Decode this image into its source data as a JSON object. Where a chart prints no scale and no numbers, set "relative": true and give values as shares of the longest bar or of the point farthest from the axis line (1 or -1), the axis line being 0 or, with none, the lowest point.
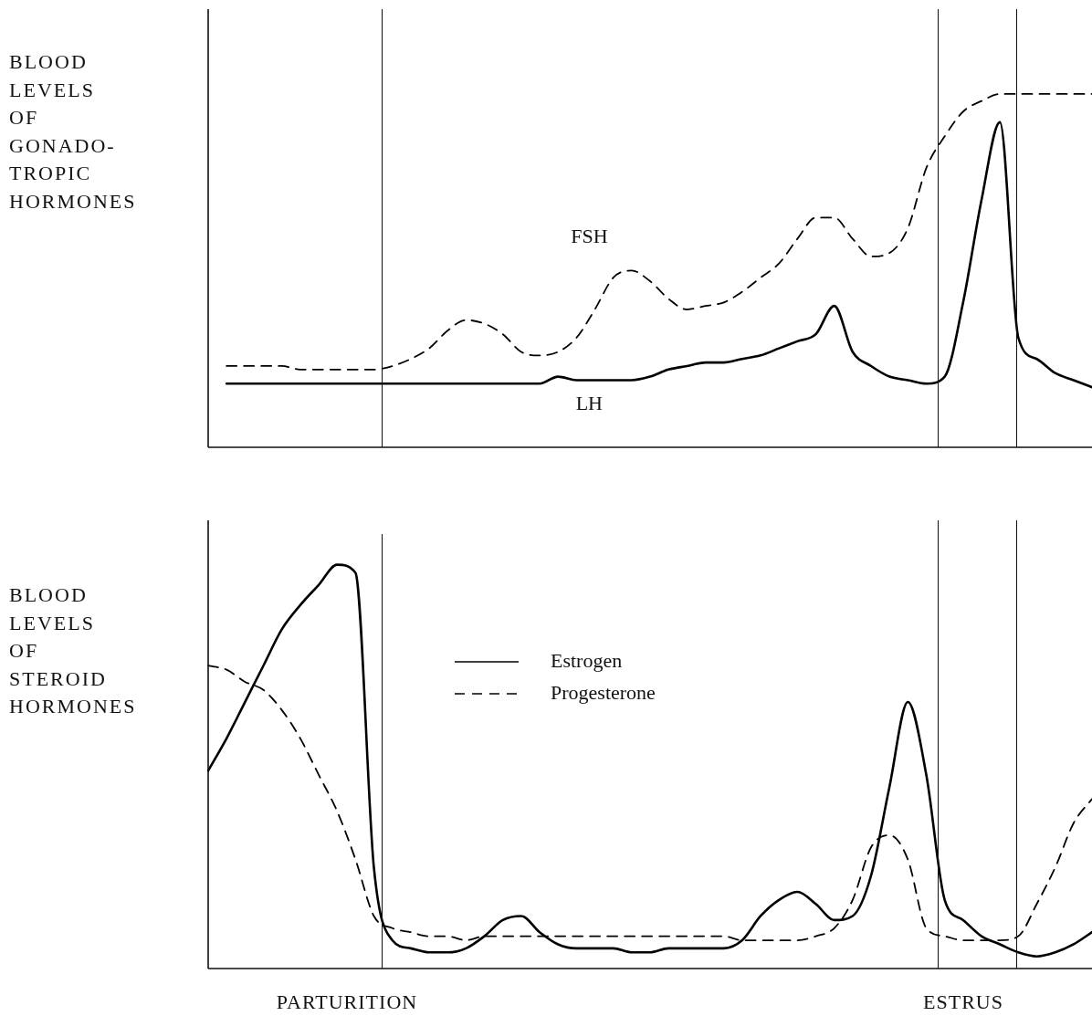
{
  "chart_data": [
    {
      "type": "line",
      "relative": true,
      "ylabel": "BLOOD\nLEVELS\nOF\nGONADO-\nTROPIC\nHORMONES",
      "marker": "none",
      "legend": false,
      "categories": [
        null,
        null,
        null,
        null,
        null,
        null,
        null,
        null,
        null,
        null,
        null,
        null,
        null,
        null,
        null,
        null,
        null,
        null,
        null,
        null,
        null,
        null,
        null,
        null,
        null,
        null,
        null,
        null,
        null,
        null,
        null,
        null,
        null,
        null,
        null,
        null,
        null,
        null,
        null,
        null,
        null,
        null,
        null,
        null,
        null,
        null,
        null,
        null,
        null
      ],
      "series": [
        {
          "name": "FSH",
          "color": "#000000",
          "line_style": "dashed",
          "values": [
            null,
            0.23,
            0.23,
            0.23,
            0.23,
            0.22,
            0.22,
            0.22,
            0.22,
            0.22,
            0.23,
            0.25,
            0.28,
            0.33,
            0.36,
            0.35,
            0.32,
            0.27,
            0.26,
            0.27,
            0.31,
            0.39,
            0.48,
            0.5,
            0.47,
            0.42,
            0.39,
            0.4,
            0.41,
            0.44,
            0.48,
            0.52,
            0.59,
            0.65,
            0.65,
            0.59,
            0.54,
            0.55,
            0.62,
            0.79,
            0.88,
            0.95,
            0.98,
            1,
            1,
            1,
            1,
            1,
            1
          ]
        },
        {
          "name": "LH",
          "color": "#000000",
          "line_style": "solid",
          "values": [
            null,
            0.18,
            0.18,
            0.18,
            0.18,
            0.18,
            0.18,
            0.18,
            0.18,
            0.18,
            0.18,
            0.18,
            0.18,
            0.18,
            0.18,
            0.18,
            0.18,
            0.18,
            0.18,
            0.2,
            0.19,
            0.19,
            0.19,
            0.19,
            0.2,
            0.22,
            0.23,
            0.24,
            0.24,
            0.25,
            0.26,
            0.28,
            0.3,
            0.32,
            0.4,
            0.27,
            0.23,
            0.2,
            0.19,
            0.18,
            0.2,
            0.41,
            0.7,
            0.92,
            0.31,
            0.25,
            0.21,
            0.19,
            0.17
          ]
        }
      ]
    },
    {
      "type": "line",
      "relative": true,
      "ylabel": "BLOOD\nLEVELS\nOF\nSTEROID\nHORMONES",
      "marker": "none",
      "legend": "left",
      "categories": [
        null,
        null,
        null,
        null,
        null,
        null,
        null,
        null,
        null,
        null,
        null,
        null,
        null,
        null,
        null,
        null,
        null,
        null,
        null,
        null,
        null,
        null,
        null,
        null,
        null,
        null,
        null,
        null,
        null,
        null,
        null,
        null,
        null,
        null,
        null,
        null,
        null,
        null,
        null,
        null,
        null,
        null,
        null,
        null,
        null,
        null,
        null,
        null,
        null
      ],
      "series": [
        {
          "name": "Estrogen",
          "color": "#000000",
          "line_style": "solid",
          "values": [
            0.49,
            0.57,
            0.66,
            0.75,
            0.84,
            0.9,
            0.95,
            1,
            0.98,
            0.25,
            0.07,
            0.05,
            0.04,
            0.04,
            0.05,
            0.08,
            0.12,
            0.13,
            0.09,
            0.06,
            0.05,
            0.05,
            0.05,
            0.04,
            0.04,
            0.05,
            0.05,
            0.05,
            0.05,
            0.07,
            0.13,
            0.17,
            0.19,
            0.16,
            0.12,
            0.13,
            0.23,
            0.45,
            0.66,
            0.48,
            0.17,
            0.12,
            0.08,
            0.06,
            0.04,
            0.03,
            0.04,
            0.06,
            0.09
          ]
        },
        {
          "name": "Progesterone",
          "color": "#000000",
          "line_style": "dashed",
          "values": [
            0.75,
            0.74,
            0.71,
            0.69,
            0.64,
            0.57,
            0.48,
            0.39,
            0.27,
            0.13,
            0.1,
            0.09,
            0.08,
            0.08,
            0.07,
            0.08,
            0.08,
            0.08,
            0.08,
            0.08,
            0.08,
            0.08,
            0.08,
            0.08,
            0.08,
            0.08,
            0.08,
            0.08,
            0.08,
            0.07,
            0.07,
            0.07,
            0.07,
            0.08,
            0.1,
            0.17,
            0.3,
            0.33,
            0.27,
            0.1,
            0.08,
            0.07,
            0.07,
            0.07,
            0.08,
            0.16,
            0.25,
            0.36,
            0.42
          ]
        }
      ],
      "annotations": [
        "PARTURITION",
        "ESTRUS"
      ]
    }
  ]
}
